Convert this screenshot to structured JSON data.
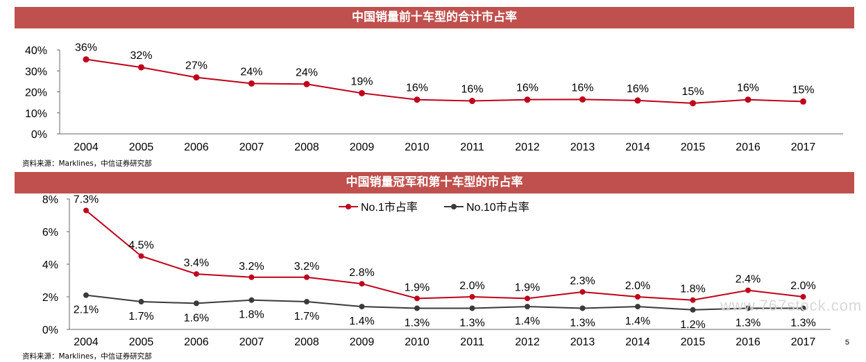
{
  "chart1": {
    "title": "中国销量前十车型的合计市占率",
    "source": "资料来源：Marklines，中信证券研究部"
  },
  "chart2": {
    "title": "中国销量冠军和第十车型的市占率",
    "source": "资料来源：Marklines，中信证券研究部"
  },
  "page_number": "5",
  "watermark": "www.767stock.com",
  "colors": {
    "banner": "#c0504d",
    "red_series": "#c0001a",
    "dark_series": "#3a3a3a"
  },
  "chart_data": [
    {
      "type": "line",
      "title": "中国销量前十车型的合计市占率",
      "x": [
        "2004",
        "2005",
        "2006",
        "2007",
        "2008",
        "2009",
        "2010",
        "2011",
        "2012",
        "2013",
        "2014",
        "2015",
        "2016",
        "2017"
      ],
      "series": [
        {
          "values": [
            36,
            32,
            27,
            24,
            24,
            19,
            16,
            16,
            16,
            16,
            16,
            15,
            16,
            15
          ],
          "labels": [
            "36%",
            "32%",
            "27%",
            "24%",
            "24%",
            "19%",
            "16%",
            "16%",
            "16%",
            "16%",
            "16%",
            "15%",
            "16%",
            "15%"
          ]
        }
      ],
      "ylim": [
        0,
        40
      ],
      "yticks": [
        "0%",
        "10%",
        "20%",
        "30%",
        "40%"
      ],
      "grid": false,
      "plotted_values": [
        35.5,
        31.7,
        26.9,
        24.0,
        23.7,
        19.4,
        16.3,
        15.7,
        16.3,
        16.4,
        15.9,
        14.6,
        16.3,
        15.4
      ]
    },
    {
      "type": "line",
      "title": "中国销量冠军和第十车型的市占率",
      "x": [
        "2004",
        "2005",
        "2006",
        "2007",
        "2008",
        "2009",
        "2010",
        "2011",
        "2012",
        "2013",
        "2014",
        "2015",
        "2016",
        "2017"
      ],
      "series": [
        {
          "name": "No.1市占率",
          "values": [
            7.3,
            4.5,
            3.4,
            3.2,
            3.2,
            2.8,
            1.9,
            2.0,
            1.9,
            2.3,
            2.0,
            1.8,
            2.4,
            2.0
          ],
          "labels": [
            "7.3%",
            "4.5%",
            "3.4%",
            "3.2%",
            "3.2%",
            "2.8%",
            "1.9%",
            "2.0%",
            "1.9%",
            "2.3%",
            "2.0%",
            "1.8%",
            "2.4%",
            "2.0%"
          ]
        },
        {
          "name": "No.10市占率",
          "values": [
            2.1,
            1.7,
            1.6,
            1.8,
            1.7,
            1.4,
            1.3,
            1.3,
            1.4,
            1.3,
            1.4,
            1.2,
            1.3,
            1.3
          ],
          "labels": [
            "2.1%",
            "1.7%",
            "1.6%",
            "1.8%",
            "1.7%",
            "1.4%",
            "1.3%",
            "1.3%",
            "1.4%",
            "1.3%",
            "1.4%",
            "1.2%",
            "1.3%",
            "1.3%"
          ]
        }
      ],
      "ylim": [
        0,
        8
      ],
      "yticks": [
        "0%",
        "2%",
        "4%",
        "6%",
        "8%"
      ],
      "legend": "top-center",
      "grid": false
    }
  ]
}
